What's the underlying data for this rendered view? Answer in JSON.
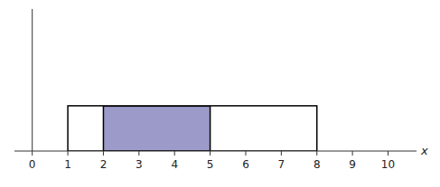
{
  "chart_data": {
    "type": "uniform",
    "x_label": "x",
    "xlim": [
      -0.5,
      10.8
    ],
    "ylim": [
      0,
      2.2
    ],
    "xticks": [
      0,
      1,
      2,
      3,
      4,
      5,
      6,
      7,
      8,
      9,
      10
    ],
    "tick_labels": "x",
    "box": {
      "x": [
        1,
        8
      ],
      "height": 0.7,
      "color": "#000000"
    },
    "shaded": {
      "x": [
        2,
        5
      ],
      "height": 0.7,
      "color": "#9b9ac8"
    }
  }
}
